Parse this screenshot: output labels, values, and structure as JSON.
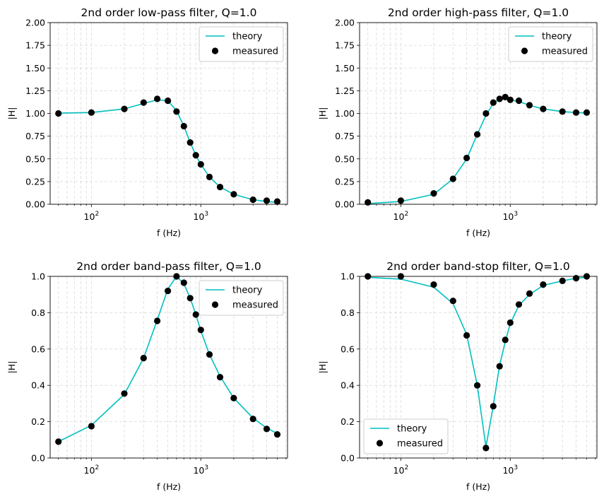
{
  "colors": {
    "theory": "#00bfbf",
    "measured": "#000000",
    "grid": "#d9d9d9",
    "legend_border": "#cccccc"
  },
  "chart_data": [
    {
      "type": "line",
      "title": "2nd order low-pass filter, Q=1.0",
      "xlabel": "f (Hz)",
      "ylabel": "|H|",
      "xscale": "log",
      "xlim": [
        42,
        6200
      ],
      "ylim": [
        0,
        2.0
      ],
      "yticks": [
        "0.00",
        "0.25",
        "0.50",
        "0.75",
        "1.00",
        "1.25",
        "1.50",
        "1.75",
        "2.00"
      ],
      "xticks": [
        {
          "base": "10",
          "exp": "2"
        },
        {
          "base": "10",
          "exp": "3"
        }
      ],
      "grid": true,
      "legend": "top-right",
      "x": [
        50,
        100,
        200,
        300,
        400,
        500,
        600,
        700,
        800,
        900,
        1000,
        1200,
        1500,
        2000,
        3000,
        4000,
        5000
      ],
      "series": [
        {
          "name": "theory",
          "style": "line",
          "values": [
            1.003,
            1.01,
            1.05,
            1.11,
            1.15,
            1.14,
            1.03,
            0.86,
            0.68,
            0.54,
            0.44,
            0.3,
            0.19,
            0.11,
            0.05,
            0.03,
            0.02
          ]
        },
        {
          "name": "measured",
          "style": "points",
          "values": [
            1.0,
            1.01,
            1.05,
            1.12,
            1.16,
            1.14,
            1.02,
            0.86,
            0.68,
            0.54,
            0.44,
            0.3,
            0.19,
            0.11,
            0.05,
            0.04,
            0.03
          ]
        }
      ]
    },
    {
      "type": "line",
      "title": "2nd order high-pass filter, Q=1.0",
      "xlabel": "f (Hz)",
      "ylabel": "|H|",
      "xscale": "log",
      "xlim": [
        42,
        6200
      ],
      "ylim": [
        0,
        2.0
      ],
      "yticks": [
        "0.00",
        "0.25",
        "0.50",
        "0.75",
        "1.00",
        "1.25",
        "1.50",
        "1.75",
        "2.00"
      ],
      "xticks": [
        {
          "base": "10",
          "exp": "2"
        },
        {
          "base": "10",
          "exp": "3"
        }
      ],
      "grid": true,
      "legend": "top-right",
      "x": [
        50,
        100,
        200,
        300,
        400,
        500,
        600,
        700,
        800,
        900,
        1000,
        1200,
        1500,
        2000,
        3000,
        4000,
        5000
      ],
      "series": [
        {
          "name": "theory",
          "style": "line",
          "values": [
            0.007,
            0.03,
            0.11,
            0.28,
            0.5,
            0.77,
            0.98,
            1.11,
            1.16,
            1.17,
            1.15,
            1.13,
            1.09,
            1.05,
            1.02,
            1.01,
            1.005
          ]
        },
        {
          "name": "measured",
          "style": "points",
          "values": [
            0.02,
            0.04,
            0.12,
            0.28,
            0.51,
            0.77,
            1.0,
            1.12,
            1.16,
            1.18,
            1.15,
            1.14,
            1.09,
            1.05,
            1.02,
            1.01,
            1.01
          ]
        }
      ]
    },
    {
      "type": "line",
      "title": "2nd order band-pass filter, Q=1.0",
      "xlabel": "f (Hz)",
      "ylabel": "|H|",
      "xscale": "log",
      "xlim": [
        42,
        6200
      ],
      "ylim": [
        0,
        1.0
      ],
      "yticks": [
        "0.0",
        "0.2",
        "0.4",
        "0.6",
        "0.8",
        "1.0"
      ],
      "xticks": [
        {
          "base": "10",
          "exp": "2"
        },
        {
          "base": "10",
          "exp": "3"
        }
      ],
      "grid": true,
      "legend": "top-right",
      "x": [
        50,
        100,
        200,
        300,
        400,
        500,
        600,
        700,
        800,
        900,
        1000,
        1200,
        1500,
        2000,
        3000,
        4000,
        5000
      ],
      "series": [
        {
          "name": "theory",
          "style": "line",
          "values": [
            0.09,
            0.18,
            0.35,
            0.55,
            0.76,
            0.93,
            1.0,
            0.96,
            0.88,
            0.79,
            0.7,
            0.57,
            0.45,
            0.33,
            0.22,
            0.165,
            0.135
          ]
        },
        {
          "name": "measured",
          "style": "points",
          "values": [
            0.09,
            0.175,
            0.355,
            0.55,
            0.755,
            0.92,
            1.0,
            0.965,
            0.88,
            0.79,
            0.705,
            0.57,
            0.445,
            0.33,
            0.215,
            0.16,
            0.13
          ]
        }
      ]
    },
    {
      "type": "line",
      "title": "2nd order band-stop filter, Q=1.0",
      "xlabel": "f (Hz)",
      "ylabel": "|H|",
      "xscale": "log",
      "xlim": [
        42,
        6200
      ],
      "ylim": [
        0,
        1.0
      ],
      "yticks": [
        "0.0",
        "0.2",
        "0.4",
        "0.6",
        "0.8",
        "1.0"
      ],
      "xticks": [
        {
          "base": "10",
          "exp": "2"
        },
        {
          "base": "10",
          "exp": "3"
        }
      ],
      "grid": true,
      "legend": "bottom-left",
      "x": [
        50,
        100,
        200,
        300,
        400,
        500,
        600,
        700,
        800,
        900,
        1000,
        1200,
        1500,
        2000,
        3000,
        4000,
        5000
      ],
      "series": [
        {
          "name": "theory",
          "style": "line",
          "values": [
            0.995,
            0.985,
            0.94,
            0.85,
            0.68,
            0.4,
            0.06,
            0.29,
            0.51,
            0.64,
            0.74,
            0.84,
            0.9,
            0.95,
            0.975,
            0.99,
            0.995
          ]
        },
        {
          "name": "measured",
          "style": "points",
          "values": [
            1.0,
            1.0,
            0.955,
            0.865,
            0.675,
            0.4,
            0.055,
            0.285,
            0.505,
            0.65,
            0.745,
            0.845,
            0.905,
            0.955,
            0.975,
            0.99,
            1.0
          ]
        }
      ]
    }
  ]
}
